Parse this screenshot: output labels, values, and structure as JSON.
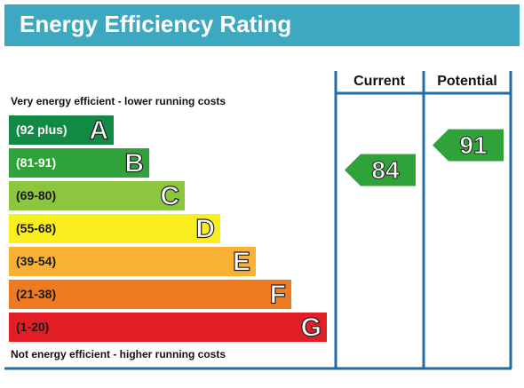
{
  "chart_data": {
    "type": "epc",
    "title": "Energy Efficiency Rating",
    "top_note": "Very energy efficient - lower running costs",
    "bottom_note": "Not energy efficient - higher running costs",
    "bands": [
      {
        "range": "(92 plus)",
        "letter": "A",
        "color": "#128a45",
        "text_color": "#ffffff"
      },
      {
        "range": "(81-91)",
        "letter": "B",
        "color": "#2fa23a",
        "text_color": "#ffffff"
      },
      {
        "range": "(69-80)",
        "letter": "C",
        "color": "#8cc63f",
        "text_color": "#1a1a1a"
      },
      {
        "range": "(55-68)",
        "letter": "D",
        "color": "#fbee1e",
        "text_color": "#1a1a1a"
      },
      {
        "range": "(39-54)",
        "letter": "E",
        "color": "#f8b133",
        "text_color": "#1a1a1a"
      },
      {
        "range": "(21-38)",
        "letter": "F",
        "color": "#ee7b22",
        "text_color": "#1a1a1a"
      },
      {
        "range": "(1-20)",
        "letter": "G",
        "color": "#e21e26",
        "text_color": "#1a1a1a"
      }
    ],
    "series": [
      {
        "name": "Current",
        "value": 84
      },
      {
        "name": "Potential",
        "value": 91
      }
    ]
  }
}
